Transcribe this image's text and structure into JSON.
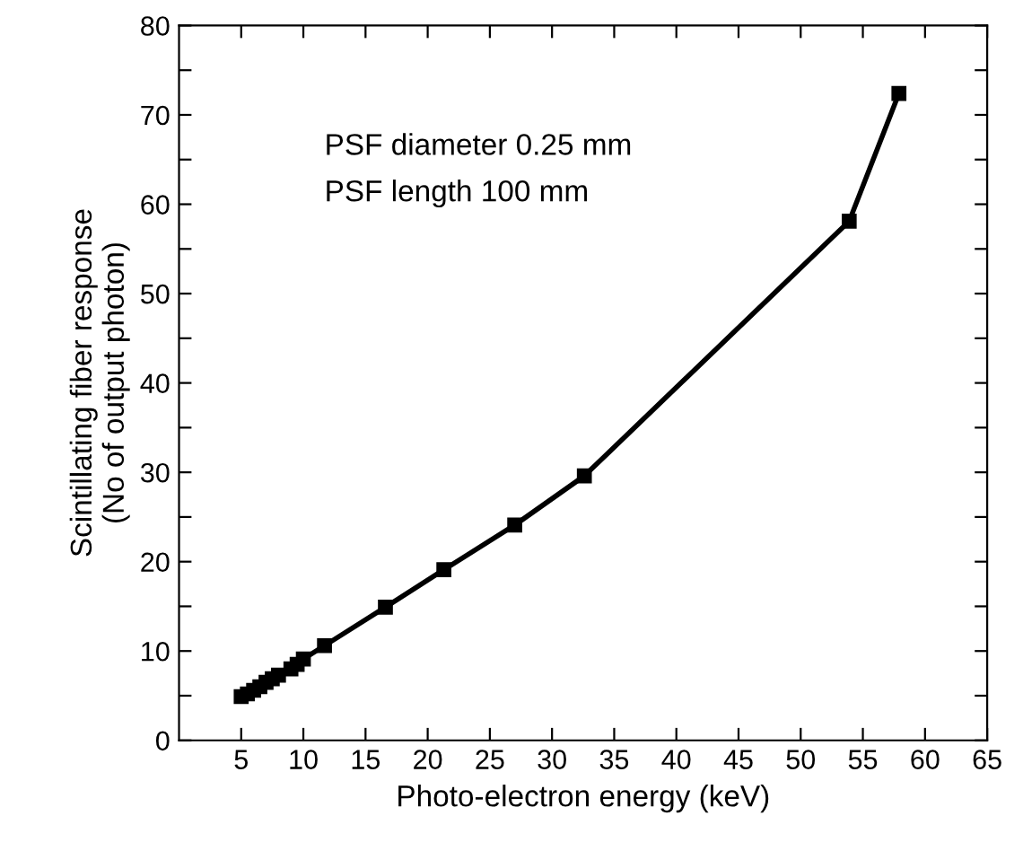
{
  "chart_data": {
    "type": "line",
    "xlabel": "Photo-electron energy (keV)",
    "ylabel": "Scintillating fiber response\n(No of output photon)",
    "annotations": [
      "PSF diameter 0.25 mm",
      "PSF length 100 mm"
    ],
    "x": [
      5.0,
      5.5,
      6.0,
      6.5,
      7.0,
      7.5,
      8.0,
      9.0,
      9.5,
      10.0,
      11.7,
      16.6,
      21.3,
      27.0,
      32.6,
      53.9,
      57.9
    ],
    "series": [
      {
        "color": "#000000",
        "values": [
          4.9,
          5.2,
          5.6,
          6.0,
          6.5,
          6.9,
          7.3,
          8.0,
          8.5,
          9.1,
          10.6,
          14.9,
          19.1,
          24.1,
          29.6,
          58.1,
          72.4
        ]
      }
    ],
    "marker": "square",
    "line_style": "solid",
    "grid": false,
    "legend": false,
    "xlim": [
      0,
      65
    ],
    "xticks": [
      5,
      10,
      15,
      20,
      25,
      30,
      35,
      40,
      45,
      50,
      55,
      60,
      65
    ],
    "ylim": [
      0,
      80
    ],
    "yticks": [
      0,
      {
        "value": 5,
        "label": null
      },
      10,
      {
        "value": 15,
        "label": null
      },
      20,
      {
        "value": 25,
        "label": null
      },
      30,
      {
        "value": 35,
        "label": null
      },
      40,
      {
        "value": 45,
        "label": null
      },
      50,
      {
        "value": 55,
        "label": null
      },
      60,
      {
        "value": 65,
        "label": null
      },
      70,
      {
        "value": 75,
        "label": null
      },
      80
    ]
  }
}
